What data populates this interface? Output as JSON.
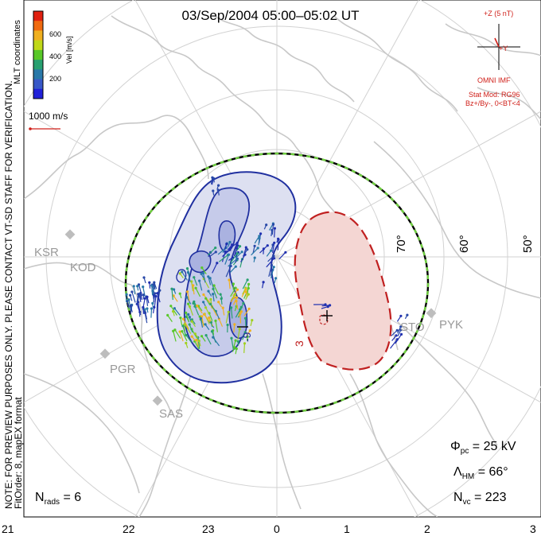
{
  "title": "03/Sep/2004 05:00–05:02 UT",
  "left_notes": {
    "preview": "NOTE: FOR PREVIEW PURPOSES ONLY. PLEASE CONTACT VT-SD STAFF FOR VERIFICATION.",
    "fit": "FitOrder: 8, mapEX format"
  },
  "coords": "MLT coordinates",
  "colorbar": {
    "label": "Vel [m/s]",
    "ticks": [
      "600",
      "400",
      "200"
    ],
    "colors": [
      "#e02010",
      "#f06a10",
      "#f0b020",
      "#c0d818",
      "#58c828",
      "#28a070",
      "#2878a8",
      "#3858c8",
      "#2020d8"
    ]
  },
  "ref_vector": "1000 m/s",
  "imf": {
    "scale": "+Z (5 nT)",
    "y_label": "+Y",
    "source": "OMNI IMF",
    "model": "Stat Mod: RG96",
    "condition": "Bz+/By-, 0<BT<4"
  },
  "stations": [
    "KSR",
    "KOD",
    "PGR",
    "SAS",
    "STO",
    "PYK"
  ],
  "latitudes": [
    "70°",
    "60°",
    "50°"
  ],
  "contour_labels": [
    "-9",
    "3"
  ],
  "stats": {
    "phi_symbol": "Φ",
    "phi_sub": "pc",
    "phi_value": "= 25 kV",
    "lambda_symbol": "Λ",
    "lambda_sub": "HM",
    "lambda_value": "= 66°",
    "nvc_symbol": "N",
    "nvc_sub": "vc",
    "nvc_value": "= 223",
    "nrads_symbol": "N",
    "nrads_sub": "rads",
    "nrads_value": "= 6"
  },
  "mlt_ticks": [
    "21",
    "22",
    "23",
    "0",
    "1",
    "2",
    "3"
  ],
  "colors": {
    "negative_cell": "#2030a0",
    "positive_cell": "#c02020",
    "hmb_a": "#000000",
    "hmb_b": "#70d040",
    "coast": "#c8c8c8",
    "grid": "#d2d2d2"
  }
}
